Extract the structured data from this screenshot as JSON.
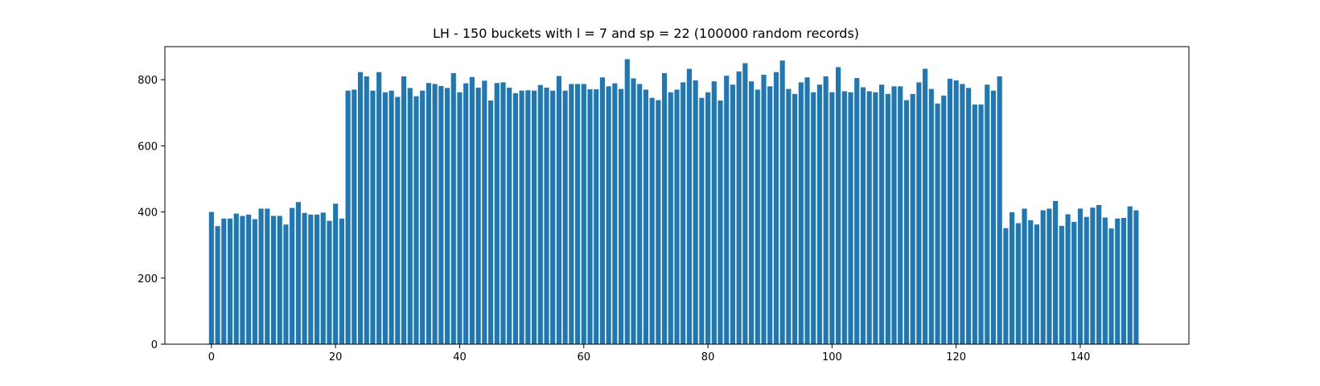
{
  "chart_data": {
    "type": "bar",
    "title": "LH - 150 buckets with l = 7 and sp = 22 (100000 random records)",
    "xlabel": "",
    "ylabel": "",
    "xlim": [
      -7.5,
      157.5
    ],
    "ylim": [
      0,
      900
    ],
    "xticks": [
      0,
      20,
      40,
      60,
      80,
      100,
      120,
      140
    ],
    "yticks": [
      0,
      200,
      400,
      600,
      800
    ],
    "grid": false,
    "bar_color": "#1f77b4",
    "x": [
      0,
      1,
      2,
      3,
      4,
      5,
      6,
      7,
      8,
      9,
      10,
      11,
      12,
      13,
      14,
      15,
      16,
      17,
      18,
      19,
      20,
      21,
      22,
      23,
      24,
      25,
      26,
      27,
      28,
      29,
      30,
      31,
      32,
      33,
      34,
      35,
      36,
      37,
      38,
      39,
      40,
      41,
      42,
      43,
      44,
      45,
      46,
      47,
      48,
      49,
      50,
      51,
      52,
      53,
      54,
      55,
      56,
      57,
      58,
      59,
      60,
      61,
      62,
      63,
      64,
      65,
      66,
      67,
      68,
      69,
      70,
      71,
      72,
      73,
      74,
      75,
      76,
      77,
      78,
      79,
      80,
      81,
      82,
      83,
      84,
      85,
      86,
      87,
      88,
      89,
      90,
      91,
      92,
      93,
      94,
      95,
      96,
      97,
      98,
      99,
      100,
      101,
      102,
      103,
      104,
      105,
      106,
      107,
      108,
      109,
      110,
      111,
      112,
      113,
      114,
      115,
      116,
      117,
      118,
      119,
      120,
      121,
      122,
      123,
      124,
      125,
      126,
      127,
      128,
      129,
      130,
      131,
      132,
      133,
      134,
      135,
      136,
      137,
      138,
      139,
      140,
      141,
      142,
      143,
      144,
      145,
      146,
      147,
      148,
      149
    ],
    "values": [
      400,
      357,
      380,
      380,
      395,
      388,
      392,
      378,
      410,
      410,
      388,
      388,
      362,
      412,
      430,
      397,
      392,
      392,
      398,
      373,
      425,
      380,
      767,
      770,
      823,
      810,
      767,
      823,
      762,
      767,
      748,
      810,
      775,
      750,
      767,
      790,
      787,
      781,
      775,
      820,
      762,
      789,
      808,
      776,
      797,
      737,
      790,
      792,
      776,
      759,
      767,
      768,
      767,
      784,
      776,
      767,
      811,
      767,
      787,
      787,
      787,
      771,
      771,
      807,
      780,
      789,
      772,
      862,
      804,
      787,
      770,
      745,
      738,
      820,
      762,
      770,
      792,
      833,
      798,
      745,
      762,
      795,
      737,
      812,
      785,
      825,
      850,
      795,
      770,
      815,
      780,
      823,
      858,
      772,
      757,
      792,
      807,
      762,
      785,
      810,
      762,
      838,
      765,
      762,
      805,
      777,
      765,
      762,
      785,
      757,
      780,
      780,
      738,
      757,
      792,
      833,
      772,
      728,
      752,
      803,
      798,
      787,
      775,
      725,
      725,
      785,
      767,
      810,
      351,
      399,
      366,
      410,
      375,
      362,
      405,
      410,
      433,
      358,
      393,
      370,
      410,
      385,
      413,
      421,
      383,
      350,
      380,
      382,
      417,
      405
    ]
  }
}
